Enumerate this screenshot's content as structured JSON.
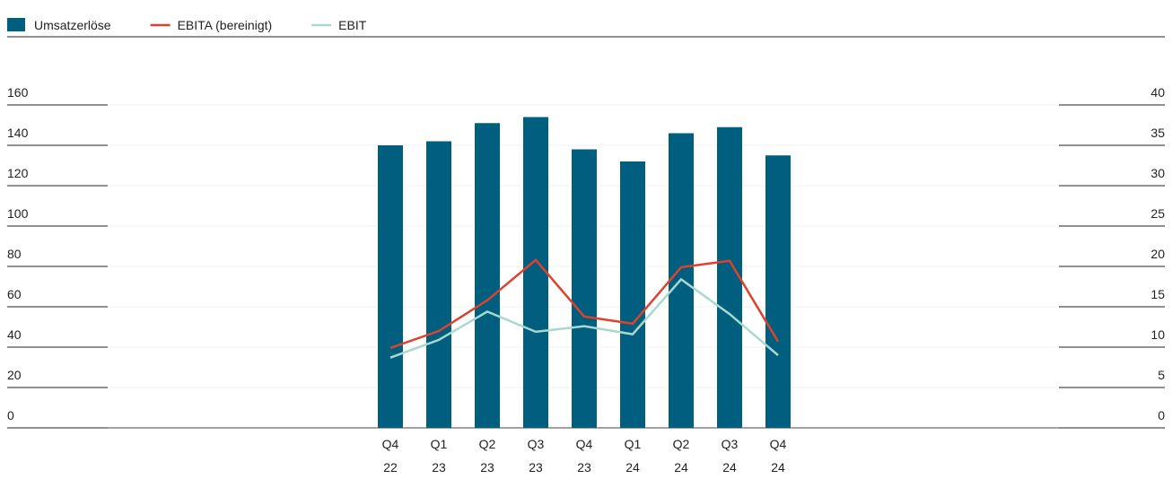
{
  "chart_data": {
    "type": "bar_line",
    "categories": [
      [
        "Q4",
        "22"
      ],
      [
        "Q1",
        "23"
      ],
      [
        "Q2",
        "23"
      ],
      [
        "Q3",
        "23"
      ],
      [
        "Q4",
        "23"
      ],
      [
        "Q1",
        "24"
      ],
      [
        "Q2",
        "24"
      ],
      [
        "Q3",
        "24"
      ],
      [
        "Q4",
        "24"
      ]
    ],
    "series": [
      {
        "name": "Umsatzerlöse",
        "type": "bar",
        "color": "#005f7f",
        "values": [
          140,
          142,
          151,
          154,
          138,
          132,
          146,
          149,
          135
        ]
      },
      {
        "name": "EBITA (bereinigt)",
        "type": "line",
        "axis": "y2",
        "color": "#e0412f",
        "values": [
          9.9,
          12,
          15.8,
          20.8,
          13.8,
          12.9,
          19.9,
          20.7,
          10.7
        ]
      },
      {
        "name": "EBIT",
        "type": "line",
        "axis": "y2",
        "color": "#a8d8cf",
        "values": [
          8.7,
          10.9,
          14.4,
          11.9,
          12.6,
          11.6,
          18.4,
          14.1,
          9
        ]
      }
    ],
    "ylim": [
      0,
      160
    ],
    "yticks": [
      0,
      20,
      40,
      60,
      80,
      100,
      120,
      140,
      160
    ],
    "y2lim": [
      0,
      40
    ],
    "y2ticks": [
      0,
      5,
      10,
      15,
      20,
      25,
      30,
      35,
      40
    ],
    "grid": true,
    "legend": "top-left"
  }
}
